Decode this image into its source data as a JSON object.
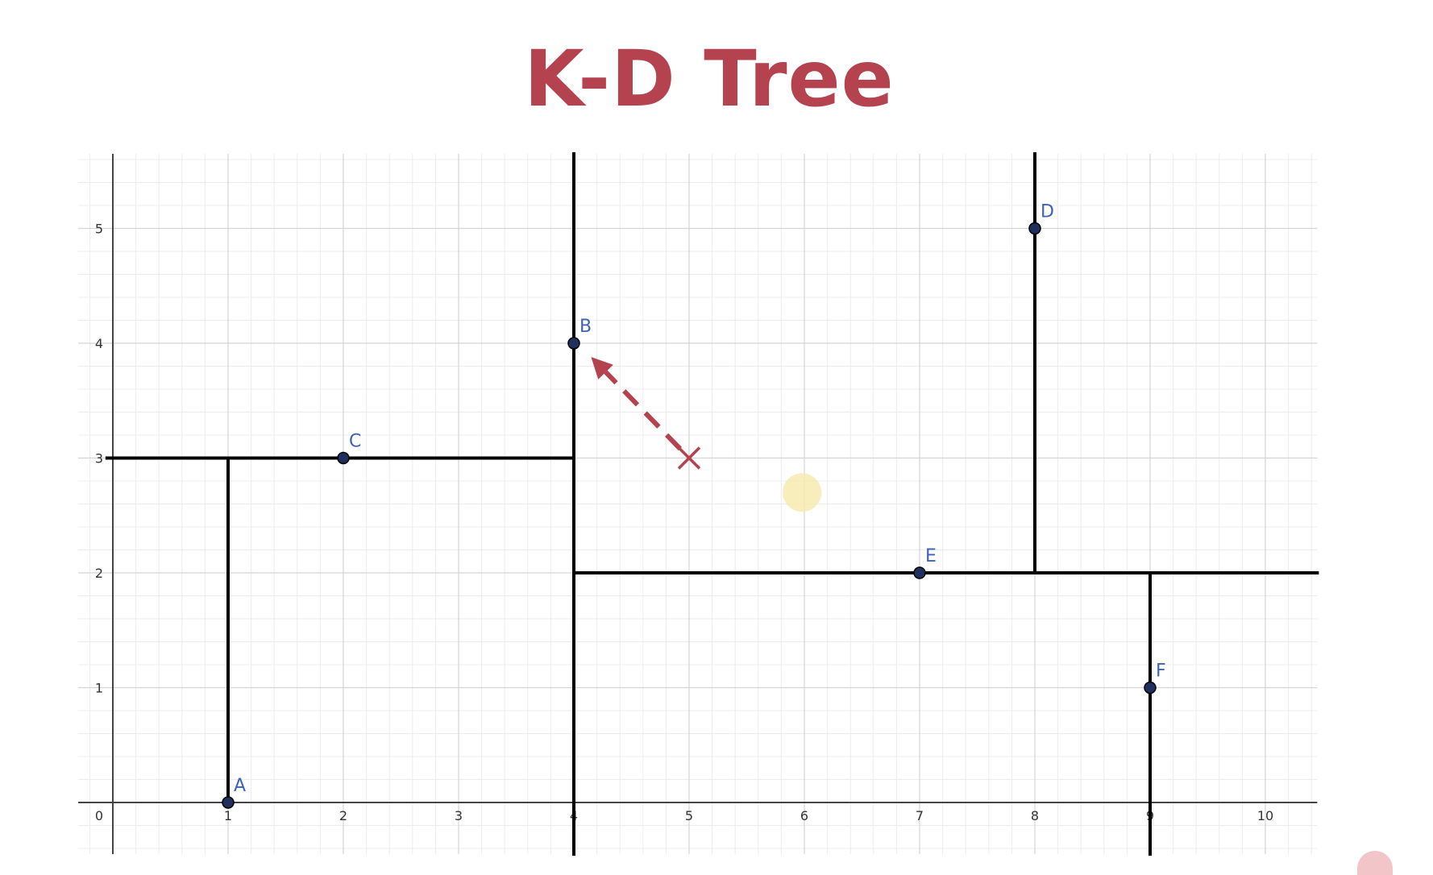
{
  "title": "K-D Tree",
  "colors": {
    "title": "#b4434f",
    "grid_minor": "#ececec",
    "grid_major": "#d4d4d4",
    "axis": "#444444",
    "split_line": "#000000",
    "point_fill": "#1f2f5e",
    "point_label": "#3d63b8",
    "query": "#b4434f",
    "highlight": "#f6ebb0"
  },
  "chart_data": {
    "type": "scatter",
    "xlim": [
      -0.3,
      10.45
    ],
    "ylim": [
      -0.45,
      5.65
    ],
    "grid": true,
    "minor_grid_step": 0.2,
    "x_ticks": [
      "0",
      "1",
      "2",
      "3",
      "4",
      "5",
      "6",
      "7",
      "8",
      "9",
      "10"
    ],
    "y_ticks": [
      "1",
      "2",
      "3",
      "4",
      "5"
    ],
    "points": [
      {
        "label": "A",
        "x": 1,
        "y": 0
      },
      {
        "label": "B",
        "x": 4,
        "y": 4
      },
      {
        "label": "C",
        "x": 2,
        "y": 3
      },
      {
        "label": "D",
        "x": 8,
        "y": 5
      },
      {
        "label": "E",
        "x": 7,
        "y": 2
      },
      {
        "label": "F",
        "x": 9,
        "y": 1
      }
    ],
    "splits": [
      {
        "x1": 4,
        "y1": -0.45,
        "x2": 4,
        "y2": 5.65
      },
      {
        "x1": -0.05,
        "y1": 3,
        "x2": 4,
        "y2": 3
      },
      {
        "x1": 1,
        "y1": 0,
        "x2": 1,
        "y2": 3
      },
      {
        "x1": 4,
        "y1": 2,
        "x2": 10.45,
        "y2": 2
      },
      {
        "x1": 8,
        "y1": 2,
        "x2": 8,
        "y2": 5.65
      },
      {
        "x1": 9,
        "y1": -0.45,
        "x2": 9,
        "y2": 2
      }
    ],
    "query_point": {
      "x": 5,
      "y": 3
    },
    "nearest_arrow": {
      "from": [
        5,
        3
      ],
      "to": [
        4.15,
        3.88
      ]
    },
    "cursor_highlight": {
      "x": 5.98,
      "y": 2.7
    }
  }
}
